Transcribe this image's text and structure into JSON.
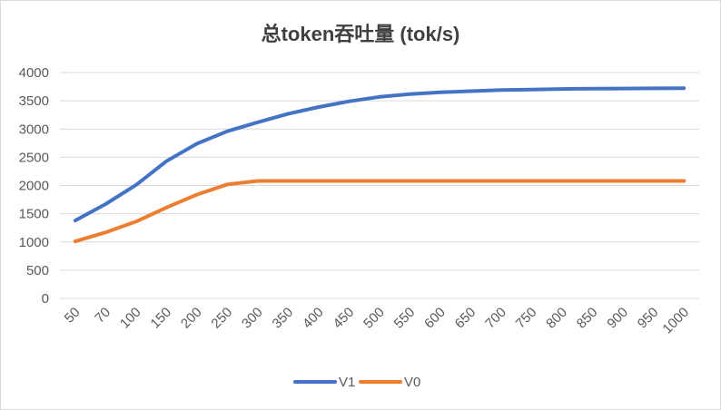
{
  "chart_data": {
    "type": "line",
    "title": "总token吞吐量 (tok/s)",
    "xlabel": "",
    "ylabel": "",
    "categories": [
      "50",
      "70",
      "100",
      "150",
      "200",
      "250",
      "300",
      "350",
      "400",
      "450",
      "500",
      "550",
      "600",
      "650",
      "700",
      "750",
      "800",
      "850",
      "900",
      "950",
      "1000"
    ],
    "ylim": [
      0,
      4000
    ],
    "yticks": [
      0,
      500,
      1000,
      1500,
      2000,
      2500,
      3000,
      3500,
      4000
    ],
    "grid": true,
    "legend_position": "bottom",
    "series": [
      {
        "name": "V1",
        "color": "#4472C4",
        "values": [
          1380,
          1670,
          2010,
          2430,
          2740,
          2960,
          3120,
          3270,
          3390,
          3490,
          3570,
          3620,
          3650,
          3670,
          3690,
          3700,
          3710,
          3715,
          3718,
          3720,
          3722
        ]
      },
      {
        "name": "V0",
        "color": "#ED7D31",
        "values": [
          1010,
          1170,
          1360,
          1610,
          1840,
          2020,
          2080,
          2080,
          2080,
          2080,
          2080,
          2080,
          2080,
          2080,
          2080,
          2080,
          2080,
          2080,
          2080,
          2080,
          2080
        ]
      }
    ]
  }
}
